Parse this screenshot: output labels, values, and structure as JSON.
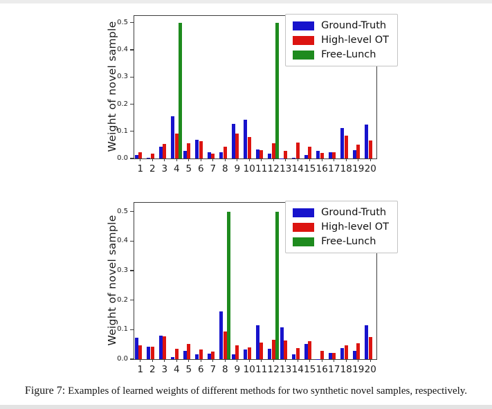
{
  "figure": {
    "background": "#ffffff"
  },
  "caption": {
    "label": "Figure 7:",
    "text": "Examples of learned weights of different methods for two synthetic novel samples, respectively."
  },
  "colors": {
    "ground_truth": "#1713cc",
    "high_level_ot": "#dc1410",
    "free_lunch": "#1e8b1e",
    "spine": "#3d3d3d",
    "legend_border": "#c3c3c3"
  },
  "chart_data": [
    {
      "type": "bar",
      "title": "",
      "ylabel": "Weight of novel sample",
      "xlabel": "",
      "ylim": [
        0,
        0.525
      ],
      "grid": false,
      "legend_position": "upper right",
      "yticks": [
        "0.0",
        "0.1",
        "0.2",
        "0.3",
        "0.4",
        "0.5"
      ],
      "categories": [
        "1",
        "2",
        "3",
        "4",
        "5",
        "6",
        "7",
        "8",
        "9",
        "10",
        "11",
        "12",
        "13",
        "14",
        "15",
        "16",
        "17",
        "18",
        "19",
        "20"
      ],
      "series": [
        {
          "name": "Ground-Truth",
          "color": "#1713cc",
          "values": [
            0.012,
            0.002,
            0.044,
            0.155,
            0.027,
            0.068,
            0.023,
            0.022,
            0.127,
            0.143,
            0.032,
            0.017,
            0.001,
            0.003,
            0.012,
            0.028,
            0.023,
            0.112,
            0.03,
            0.124
          ]
        },
        {
          "name": "High-level OT",
          "color": "#dc1410",
          "values": [
            0.022,
            0.018,
            0.054,
            0.093,
            0.056,
            0.063,
            0.018,
            0.044,
            0.092,
            0.08,
            0.03,
            0.057,
            0.028,
            0.06,
            0.044,
            0.02,
            0.023,
            0.085,
            0.052,
            0.067
          ]
        },
        {
          "name": "Free-Lunch",
          "color": "#1e8b1e",
          "values": [
            0,
            0,
            0,
            0.5,
            0,
            0,
            0,
            0,
            0,
            0,
            0,
            0.5,
            0,
            0,
            0,
            0,
            0,
            0,
            0,
            0
          ]
        }
      ]
    },
    {
      "type": "bar",
      "title": "",
      "ylabel": "Weight of novel sample",
      "xlabel": "",
      "ylim": [
        0,
        0.53
      ],
      "grid": false,
      "legend_position": "upper right",
      "yticks": [
        "0.0",
        "0.1",
        "0.2",
        "0.3",
        "0.4",
        "0.5"
      ],
      "categories": [
        "1",
        "2",
        "3",
        "4",
        "5",
        "6",
        "7",
        "8",
        "9",
        "10",
        "11",
        "12",
        "13",
        "14",
        "15",
        "16",
        "17",
        "18",
        "19",
        "20"
      ],
      "series": [
        {
          "name": "Ground-Truth",
          "color": "#1713cc",
          "values": [
            0.073,
            0.042,
            0.079,
            0.006,
            0.028,
            0.016,
            0.02,
            0.162,
            0.016,
            0.032,
            0.115,
            0.036,
            0.107,
            0.017,
            0.051,
            0.001,
            0.021,
            0.037,
            0.028,
            0.115
          ]
        },
        {
          "name": "High-level OT",
          "color": "#dc1410",
          "values": [
            0.046,
            0.043,
            0.077,
            0.036,
            0.051,
            0.032,
            0.027,
            0.094,
            0.048,
            0.04,
            0.057,
            0.065,
            0.064,
            0.038,
            0.062,
            0.029,
            0.022,
            0.046,
            0.055,
            0.076
          ]
        },
        {
          "name": "Free-Lunch",
          "color": "#1e8b1e",
          "values": [
            0,
            0,
            0,
            0,
            0,
            0,
            0,
            0.5,
            0,
            0,
            0,
            0.5,
            0,
            0,
            0,
            0,
            0,
            0,
            0,
            0
          ]
        }
      ]
    }
  ]
}
